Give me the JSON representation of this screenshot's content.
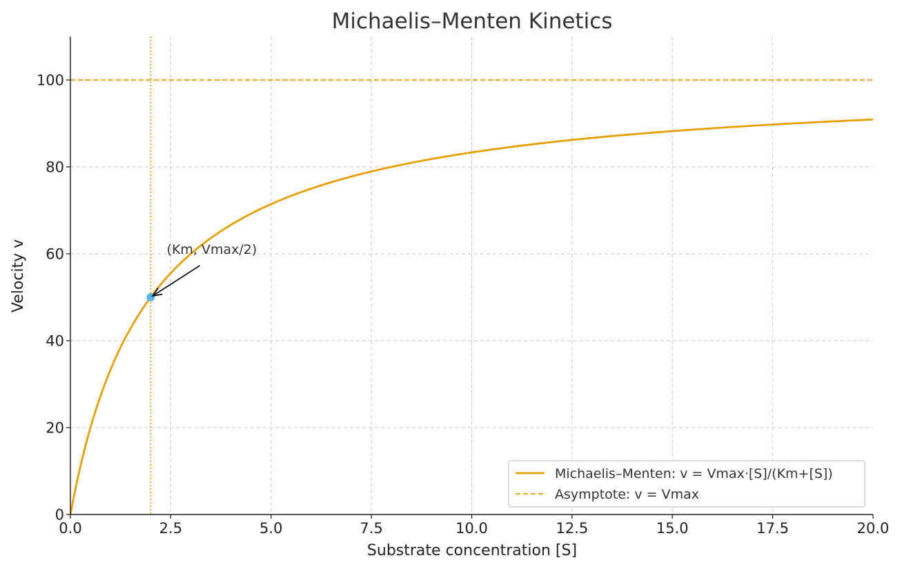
{
  "chart_data": {
    "type": "line",
    "title": "Michaelis–Menten Kinetics",
    "xlabel": "Substrate concentration [S]",
    "ylabel": "Velocity v",
    "xlim": [
      0,
      20
    ],
    "ylim": [
      0,
      110
    ],
    "x_ticks": [
      "0.0",
      "2.5",
      "5.0",
      "7.5",
      "10.0",
      "12.5",
      "15.0",
      "17.5",
      "20.0"
    ],
    "y_ticks": [
      "0",
      "20",
      "40",
      "60",
      "80",
      "100"
    ],
    "grid": true,
    "legend_position": "bottom-right",
    "parameters": {
      "Vmax": 100,
      "Km": 2
    },
    "series": [
      {
        "name": "Michaelis–Menten: v = Vmax·[S]/(Km+[S])",
        "style": "solid",
        "color": "#E69F00",
        "x": [
          0,
          0.5,
          1,
          1.5,
          2,
          2.5,
          3,
          4,
          5,
          6,
          7,
          8,
          9,
          10,
          11,
          12,
          13,
          14,
          15,
          16,
          17,
          18,
          19,
          20
        ],
        "y": [
          0,
          20,
          33.33,
          42.86,
          50,
          55.56,
          60,
          66.67,
          71.43,
          75,
          77.78,
          80,
          81.82,
          83.33,
          84.62,
          85.71,
          86.67,
          87.5,
          88.24,
          88.89,
          89.47,
          90,
          90.48,
          90.91
        ]
      },
      {
        "name": "Asymptote: v = Vmax",
        "style": "dashed",
        "color": "#E69F00",
        "y": 100
      }
    ],
    "reference_lines": [
      {
        "axis": "x",
        "value": 2,
        "style": "dotted",
        "color": "#E69F00"
      }
    ],
    "points": [
      {
        "x": 2,
        "y": 50,
        "color": "#56B4E9"
      }
    ],
    "annotation": {
      "text": "(Km, Vmax/2)",
      "x": 2,
      "y": 50,
      "text_x": 2.4,
      "text_y": 60
    }
  }
}
